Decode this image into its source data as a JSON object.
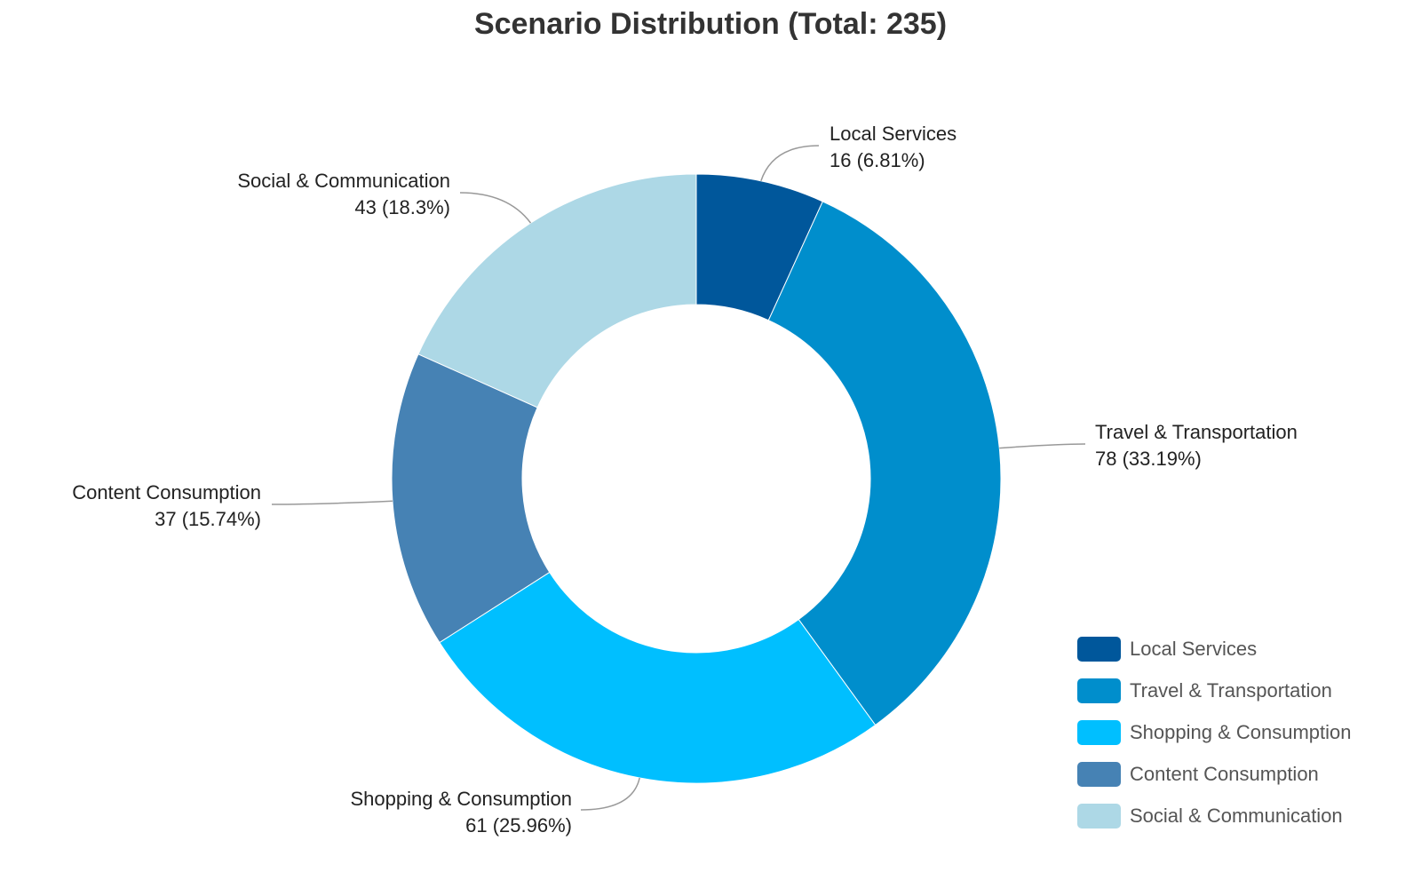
{
  "chart_data": {
    "type": "pie",
    "variant": "donut",
    "title": "Scenario Distribution (Total: 235)",
    "categories": [
      "Local Services",
      "Travel & Transportation",
      "Shopping & Consumption",
      "Content Consumption",
      "Social & Communication"
    ],
    "values": [
      16,
      78,
      61,
      37,
      43
    ],
    "percent_labels": [
      "6.81%",
      "33.19%",
      "25.96%",
      "15.74%",
      "18.3%"
    ],
    "value_labels": [
      "16 (6.81%)",
      "78 (33.19%)",
      "61 (25.96%)",
      "37 (15.74%)",
      "43 (18.3%)"
    ],
    "colors": [
      "#00579b",
      "#008ecc",
      "#00bfff",
      "#4682b4",
      "#add8e6"
    ],
    "legend_placement": "bottom-right",
    "start_angle": "top",
    "direction": "clockwise"
  }
}
